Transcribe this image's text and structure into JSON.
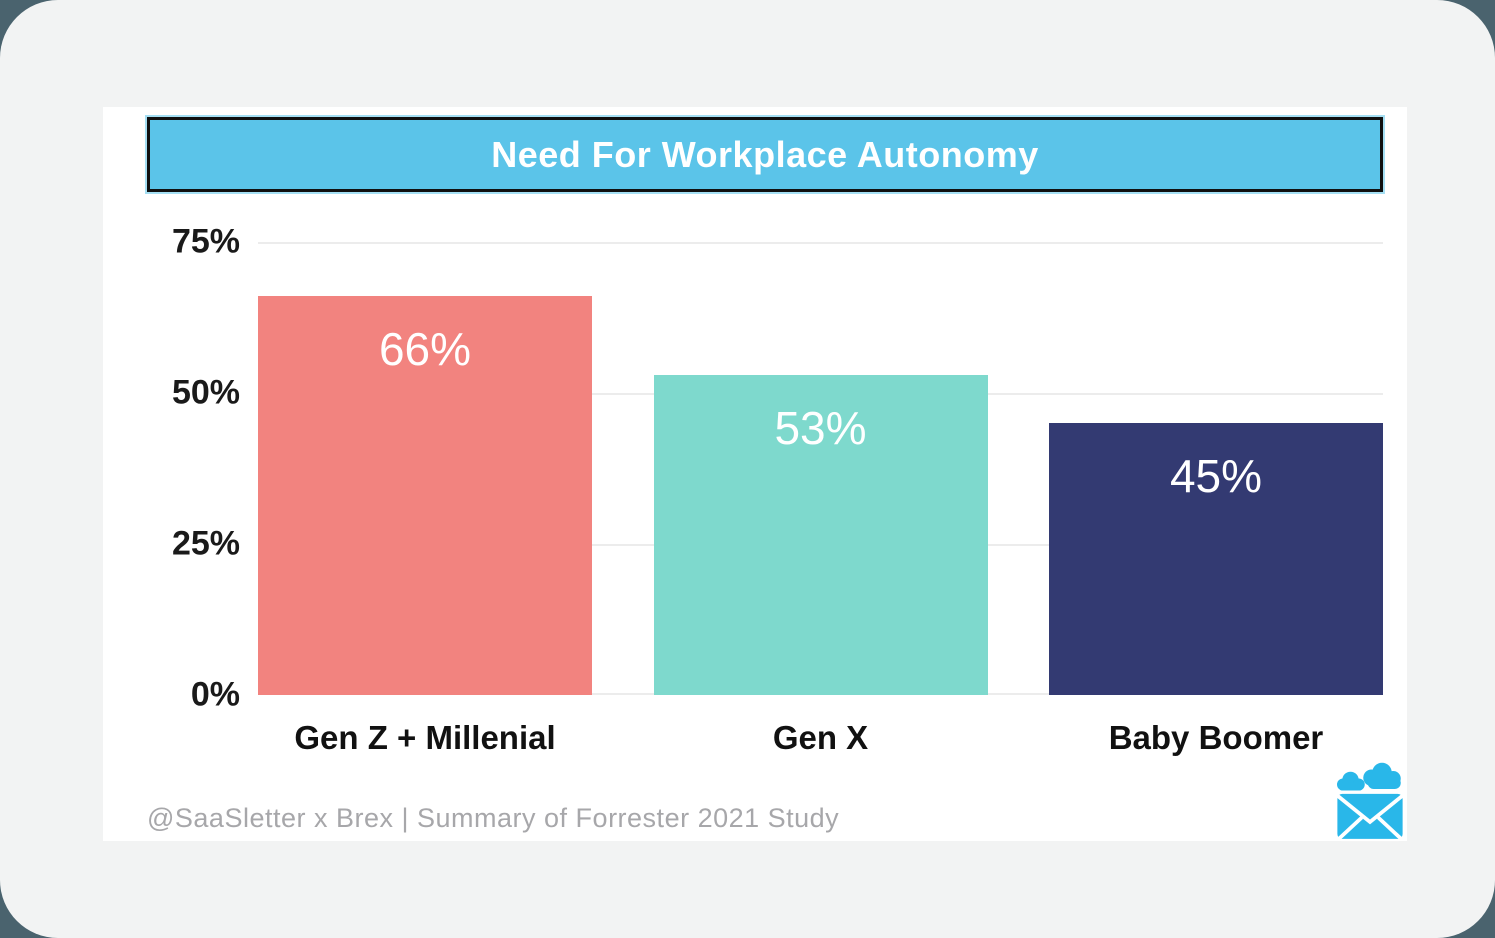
{
  "page": {
    "background_color": "#4a636e",
    "panel_color": "#f2f3f3",
    "card_color": "#ffffff"
  },
  "header": {
    "title": "Need For Workplace Autonomy",
    "bg_color": "#5bc4e9",
    "border_color": "#101010",
    "text_color": "#ffffff"
  },
  "chart_data": {
    "type": "bar",
    "title": "Need For Workplace Autonomy",
    "categories": [
      "Gen Z + Millenial",
      "Gen X",
      "Baby Boomer"
    ],
    "values": [
      66,
      53,
      45
    ],
    "value_labels": [
      "66%",
      "53%",
      "45%"
    ],
    "bar_colors": [
      "#f2837f",
      "#7ed9cd",
      "#333a72"
    ],
    "xlabel": "",
    "ylabel": "",
    "ylim": [
      0,
      75
    ],
    "yticks": [
      "75%",
      "50%",
      "25%",
      "0%"
    ],
    "ytick_values": [
      75,
      50,
      25,
      0
    ],
    "grid": true,
    "gridline_color": "#ececec",
    "value_label_color": "#ffffff",
    "legend": "none"
  },
  "footer": {
    "credit": "@SaaSletter x Brex | Summary of Forrester 2021 Study",
    "text_color": "#a7a7aa",
    "logo": "cloud-envelope-icon",
    "logo_color": "#29b7e9"
  }
}
